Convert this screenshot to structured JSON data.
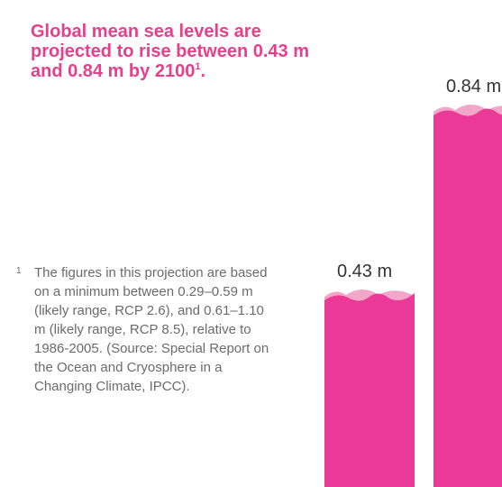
{
  "headline": {
    "text": "Global mean sea levels are projected to rise between 0.43 m and 0.84 m by 2100",
    "footnote_ref": "1",
    "end_punct": "."
  },
  "footnote": {
    "mark": "1",
    "text": "The figures in this projection are based on a minimum between 0.29–0.59 m (likely range, RCP 2.6), and 0.61–1.10 m (likely range, RCP 8.5), relative to 1986-2005. (Source: Special Report on the Ocean and Cryosphere in a Changing Climate, IPCC)."
  },
  "colors": {
    "bar": "#ea3996",
    "wave_back": "#f2a6c8",
    "headline": "#e83e8c",
    "footnote": "#6b6b6b"
  },
  "chart_data": {
    "type": "bar",
    "categories": [
      "",
      ""
    ],
    "values": [
      0.43,
      0.84
    ],
    "data_labels": [
      "0.43 m",
      "0.84 m"
    ],
    "ylim": [
      0,
      1.0
    ],
    "unit": "m",
    "grid": false
  }
}
